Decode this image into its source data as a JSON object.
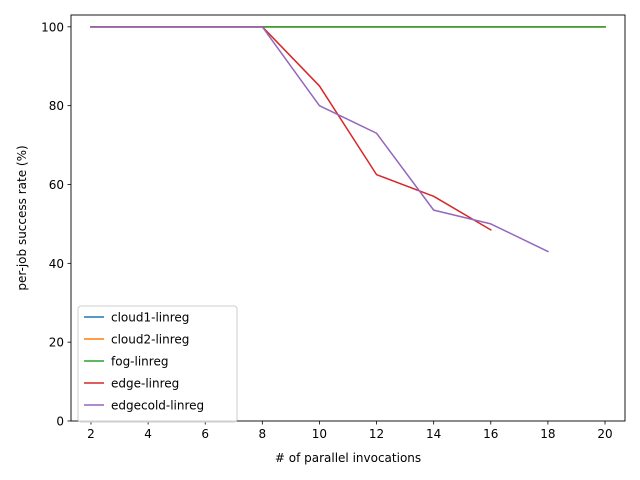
{
  "chart_data": {
    "type": "line",
    "xlabel": "# of parallel invocations",
    "ylabel": "per-job success rate (%)",
    "xlim": [
      1.3,
      20.7
    ],
    "ylim": [
      0,
      103
    ],
    "xticks": [
      2,
      4,
      6,
      8,
      10,
      12,
      14,
      16,
      18,
      20
    ],
    "yticks": [
      0,
      20,
      40,
      60,
      80,
      100
    ],
    "grid": false,
    "legend_position": "lower-left",
    "series": [
      {
        "name": "cloud1-linreg",
        "color": "#1f77b4",
        "x": [
          2,
          4,
          6,
          8,
          10,
          12,
          14,
          16,
          18,
          20
        ],
        "y": [
          100,
          100,
          100,
          100,
          100,
          100,
          100,
          100,
          100,
          100
        ]
      },
      {
        "name": "cloud2-linreg",
        "color": "#ff7f0e",
        "x": [
          2,
          4,
          6,
          8,
          10,
          12,
          14,
          16,
          18,
          20
        ],
        "y": [
          100,
          100,
          100,
          100,
          100,
          100,
          100,
          100,
          100,
          100
        ]
      },
      {
        "name": "fog-linreg",
        "color": "#2ca02c",
        "x": [
          2,
          4,
          6,
          8,
          10,
          12,
          14,
          16,
          18,
          20
        ],
        "y": [
          100,
          100,
          100,
          100,
          100,
          100,
          100,
          100,
          100,
          100
        ]
      },
      {
        "name": "edge-linreg",
        "color": "#d62728",
        "x": [
          2,
          4,
          6,
          8,
          10,
          12,
          14,
          16
        ],
        "y": [
          100,
          100,
          100,
          100,
          85,
          62.5,
          57,
          48.5
        ]
      },
      {
        "name": "edgecold-linreg",
        "color": "#9467bd",
        "x": [
          2,
          4,
          6,
          8,
          10,
          12,
          14,
          16,
          18
        ],
        "y": [
          100,
          100,
          100,
          100,
          80,
          73,
          53.5,
          50,
          43
        ]
      }
    ]
  }
}
